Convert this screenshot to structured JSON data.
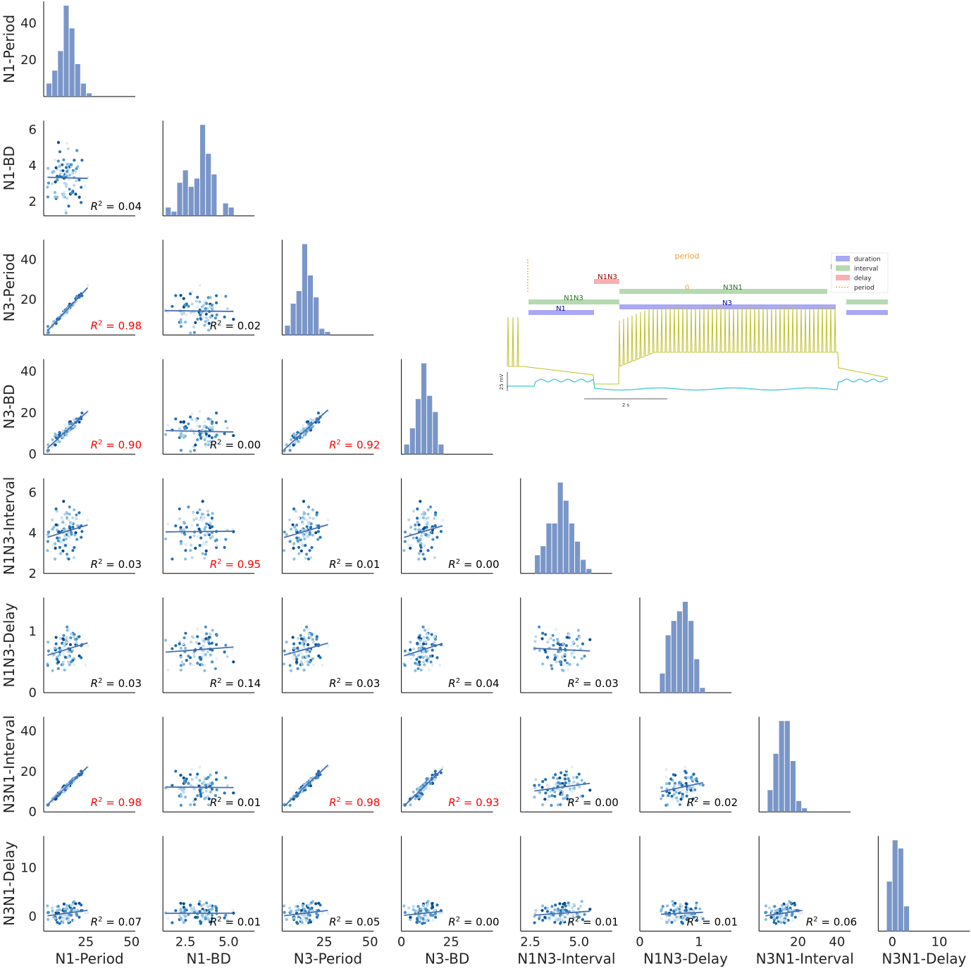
{
  "chart_data": {
    "type": "scatter",
    "title": "",
    "variables": [
      "N1-Period",
      "N1-BD",
      "N3-Period",
      "N3-BD",
      "N1N3-Interval",
      "N1N3-Delay",
      "N3N1-Interval",
      "N3N1-Delay"
    ],
    "axes": [
      {
        "name": "N1-Period",
        "min": 2,
        "max": 52,
        "ticks": [
          25,
          50
        ],
        "tick_labels": [
          "25",
          "50"
        ],
        "mean": 14,
        "sd": 7
      },
      {
        "name": "N1-BD",
        "min": 1.2,
        "max": 6.5,
        "ticks": [
          2.5,
          5.0
        ],
        "tick_labels": [
          "2.5",
          "5.0"
        ],
        "mean": 3.3,
        "sd": 1.1
      },
      {
        "name": "N3-Period",
        "min": 2,
        "max": 52,
        "ticks": [
          25,
          50
        ],
        "tick_labels": [
          "25",
          "50"
        ],
        "mean": 14,
        "sd": 7
      },
      {
        "name": "N3-BD",
        "min": 0,
        "max": 46,
        "ticks": [
          0,
          25
        ],
        "tick_labels": [
          "0",
          "25"
        ],
        "mean": 11,
        "sd": 6
      },
      {
        "name": "N1N3-Interval",
        "min": 2.0,
        "max": 6.7,
        "ticks": [
          2.5,
          5.0
        ],
        "tick_labels": [
          "2.5",
          "5.0"
        ],
        "mean": 3.9,
        "sd": 1.0
      },
      {
        "name": "N1N3-Delay",
        "min": 0,
        "max": 1.55,
        "ticks": [
          0,
          1
        ],
        "tick_labels": [
          "0",
          "1"
        ],
        "mean": 0.7,
        "sd": 0.25
      },
      {
        "name": "N3N1-Interval",
        "min": 0,
        "max": 47,
        "ticks": [
          20,
          40
        ],
        "tick_labels": [
          "20",
          "40"
        ],
        "mean": 12,
        "sd": 6
      },
      {
        "name": "N3N1-Delay",
        "min": -3,
        "max": 16.5,
        "ticks": [
          0,
          10
        ],
        "tick_labels": [
          "0",
          "10"
        ],
        "mean": 0.8,
        "sd": 1.4
      }
    ],
    "y_axes": [
      {
        "ticks": [
          20,
          40
        ],
        "tick_labels": [
          "20",
          "40"
        ],
        "min": 0,
        "max": 52
      },
      {
        "ticks": [
          2,
          4,
          6
        ],
        "tick_labels": [
          "2",
          "4",
          "6"
        ],
        "min": 1.2,
        "max": 6.5
      },
      {
        "ticks": [
          20,
          40
        ],
        "tick_labels": [
          "20",
          "40"
        ],
        "min": 2,
        "max": 50
      },
      {
        "ticks": [
          0,
          20,
          40
        ],
        "tick_labels": [
          "0",
          "20",
          "40"
        ],
        "min": 0,
        "max": 46
      },
      {
        "ticks": [
          2,
          4,
          6
        ],
        "tick_labels": [
          "2",
          "4",
          "6"
        ],
        "min": 2.0,
        "max": 6.7
      },
      {
        "ticks": [
          0,
          1
        ],
        "tick_labels": [
          "0",
          "1"
        ],
        "min": 0,
        "max": 1.55
      },
      {
        "ticks": [
          0,
          20,
          40
        ],
        "tick_labels": [
          "0",
          "20",
          "40"
        ],
        "min": 0,
        "max": 47
      },
      {
        "ticks": [
          0,
          10
        ],
        "tick_labels": [
          "0",
          "10"
        ],
        "min": -3,
        "max": 16.5
      }
    ],
    "correlations": [
      {
        "row": 1,
        "col": 0,
        "r2": 0.04,
        "label": "= 0.04",
        "highlight": false
      },
      {
        "row": 2,
        "col": 0,
        "r2": 0.98,
        "label": "= 0.98",
        "highlight": true
      },
      {
        "row": 2,
        "col": 1,
        "r2": 0.02,
        "label": "= 0.02",
        "highlight": false
      },
      {
        "row": 3,
        "col": 0,
        "r2": 0.9,
        "label": "= 0.90",
        "highlight": true
      },
      {
        "row": 3,
        "col": 1,
        "r2": 0.0,
        "label": "= 0.00",
        "highlight": false
      },
      {
        "row": 3,
        "col": 2,
        "r2": 0.92,
        "label": "= 0.92",
        "highlight": true
      },
      {
        "row": 4,
        "col": 0,
        "r2": 0.03,
        "label": "= 0.03",
        "highlight": false
      },
      {
        "row": 4,
        "col": 1,
        "r2": 0.95,
        "label": "= 0.95",
        "highlight": true
      },
      {
        "row": 4,
        "col": 2,
        "r2": 0.01,
        "label": "= 0.01",
        "highlight": false
      },
      {
        "row": 4,
        "col": 3,
        "r2": 0.0,
        "label": "= 0.00",
        "highlight": false
      },
      {
        "row": 5,
        "col": 0,
        "r2": 0.03,
        "label": "= 0.03",
        "highlight": false
      },
      {
        "row": 5,
        "col": 1,
        "r2": 0.14,
        "label": "= 0.14",
        "highlight": false
      },
      {
        "row": 5,
        "col": 2,
        "r2": 0.03,
        "label": "= 0.03",
        "highlight": false
      },
      {
        "row": 5,
        "col": 3,
        "r2": 0.04,
        "label": "= 0.04",
        "highlight": false
      },
      {
        "row": 5,
        "col": 4,
        "r2": 0.03,
        "label": "= 0.03",
        "highlight": false
      },
      {
        "row": 6,
        "col": 0,
        "r2": 0.98,
        "label": "= 0.98",
        "highlight": true
      },
      {
        "row": 6,
        "col": 1,
        "r2": 0.01,
        "label": "= 0.01",
        "highlight": false
      },
      {
        "row": 6,
        "col": 2,
        "r2": 0.98,
        "label": "= 0.98",
        "highlight": true
      },
      {
        "row": 6,
        "col": 3,
        "r2": 0.93,
        "label": "= 0.93",
        "highlight": true
      },
      {
        "row": 6,
        "col": 4,
        "r2": 0.0,
        "label": "= 0.00",
        "highlight": false
      },
      {
        "row": 6,
        "col": 5,
        "r2": 0.02,
        "label": "= 0.02",
        "highlight": false
      },
      {
        "row": 7,
        "col": 0,
        "r2": 0.07,
        "label": "= 0.07",
        "highlight": false
      },
      {
        "row": 7,
        "col": 1,
        "r2": 0.01,
        "label": "= 0.01",
        "highlight": false
      },
      {
        "row": 7,
        "col": 2,
        "r2": 0.05,
        "label": "= 0.05",
        "highlight": false
      },
      {
        "row": 7,
        "col": 3,
        "r2": 0.0,
        "label": "= 0.00",
        "highlight": false
      },
      {
        "row": 7,
        "col": 4,
        "r2": 0.01,
        "label": "= 0.01",
        "highlight": false
      },
      {
        "row": 7,
        "col": 5,
        "r2": 0.01,
        "label": "= 0.01",
        "highlight": false
      },
      {
        "row": 7,
        "col": 6,
        "r2": 0.06,
        "label": "= 0.06",
        "highlight": false
      }
    ],
    "r2_symbol": "R",
    "r2_sup": "2",
    "colors": {
      "bar": "#7a96c8",
      "line": "#4a6fb0",
      "highlight": "#ff0000",
      "text": "#000000",
      "points": [
        "#e3eef9",
        "#bcd7eb",
        "#8abfe0",
        "#4d94c8",
        "#2170b4",
        "#084b8f"
      ]
    },
    "inset": {
      "period_label": "period",
      "legend": [
        {
          "label": "duration",
          "color": "#a8a8f5"
        },
        {
          "label": "interval",
          "color": "#b5d9b0"
        },
        {
          "label": "delay",
          "color": "#f7b0b0"
        },
        {
          "label": "period",
          "color": "#f0a030"
        }
      ],
      "bar_labels": {
        "n1n3_delay": "N1N3",
        "n1n3_interval": "N1N3",
        "n1": "N1",
        "n3n1": "N3N1",
        "n3": "N3",
        "zero": "0",
        "truncated": "N"
      },
      "scale_v": "25 mV",
      "scale_h": "2 s",
      "trace_colors": {
        "n1": "#c4c43a",
        "n3": "#40c8d8"
      }
    }
  }
}
